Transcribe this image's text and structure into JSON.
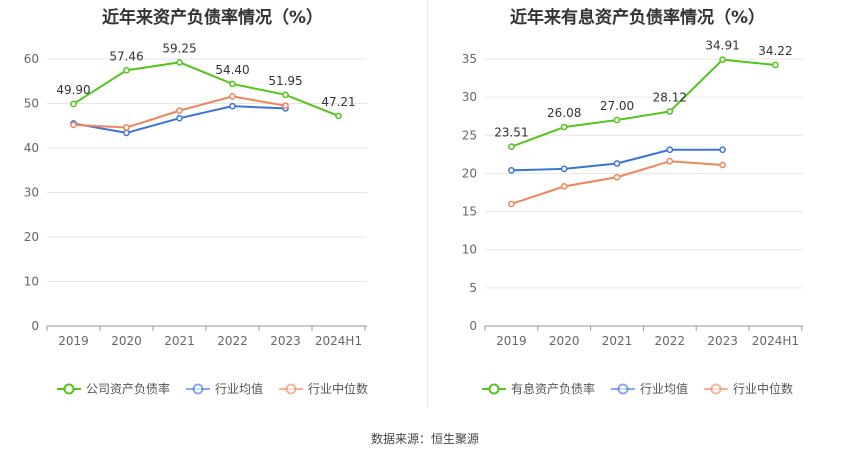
{
  "chart_data": [
    {
      "type": "line",
      "title": "近年来资产负债率情况（%）",
      "categories": [
        "2019",
        "2020",
        "2021",
        "2022",
        "2023",
        "2024H1"
      ],
      "ylim": [
        0,
        60
      ],
      "yticks": [
        0,
        10,
        20,
        30,
        40,
        50,
        60
      ],
      "grid": true,
      "legend_position": "bottom",
      "series": [
        {
          "name": "公司资产负债率",
          "color": "#52c41a",
          "labels": true,
          "values": [
            49.9,
            57.46,
            59.25,
            54.4,
            51.95,
            47.21
          ]
        },
        {
          "name": "行业均值",
          "color": "#3b73d9",
          "labels": false,
          "values": [
            45.5,
            43.4,
            46.7,
            49.4,
            48.9,
            null
          ]
        },
        {
          "name": "行业中位数",
          "color": "#f0845c",
          "labels": false,
          "values": [
            45.2,
            44.6,
            48.4,
            51.6,
            49.5,
            null
          ]
        }
      ]
    },
    {
      "type": "line",
      "title": "近年来有息资产负债率情况（%）",
      "categories": [
        "2019",
        "2020",
        "2021",
        "2022",
        "2023",
        "2024H1"
      ],
      "ylim": [
        0,
        35
      ],
      "yticks": [
        0,
        5,
        10,
        15,
        20,
        25,
        30,
        35
      ],
      "grid": true,
      "legend_position": "bottom",
      "series": [
        {
          "name": "有息资产负债率",
          "color": "#52c41a",
          "labels": true,
          "values": [
            23.51,
            26.08,
            27.0,
            28.12,
            34.91,
            34.22
          ]
        },
        {
          "name": "行业均值",
          "color": "#3b73d9",
          "labels": false,
          "values": [
            20.4,
            20.6,
            21.3,
            23.1,
            23.1,
            null
          ]
        },
        {
          "name": "行业中位数",
          "color": "#f0845c",
          "labels": false,
          "values": [
            16.0,
            18.3,
            19.5,
            21.6,
            21.1,
            null
          ]
        }
      ]
    }
  ],
  "source": "数据来源：恒生聚源"
}
